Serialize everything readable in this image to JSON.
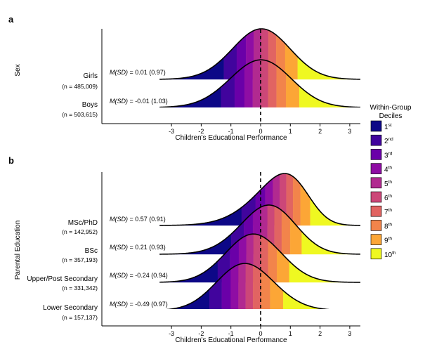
{
  "legend": {
    "title_line1": "Within-Group",
    "title_line2": "Deciles",
    "items": [
      {
        "num": "1",
        "sup": "st",
        "color": "#0d0887"
      },
      {
        "num": "2",
        "sup": "nd",
        "color": "#41049d"
      },
      {
        "num": "3",
        "sup": "rd",
        "color": "#6a00a8"
      },
      {
        "num": "4",
        "sup": "th",
        "color": "#8f0da4"
      },
      {
        "num": "5",
        "sup": "th",
        "color": "#b12a90"
      },
      {
        "num": "6",
        "sup": "th",
        "color": "#cc4778"
      },
      {
        "num": "7",
        "sup": "th",
        "color": "#e16462"
      },
      {
        "num": "8",
        "sup": "th",
        "color": "#f2844b"
      },
      {
        "num": "9",
        "sup": "th",
        "color": "#fca636"
      },
      {
        "num": "10",
        "sup": "th",
        "color": "#eff821"
      }
    ]
  },
  "chart_data": [
    {
      "type": "area",
      "panel_label": "a",
      "ylabel": "Sex",
      "xlabel": "Children's Educational Performance",
      "xlim": [
        -3.4,
        3.4
      ],
      "xticks": [
        -3,
        -2,
        -1,
        0,
        1,
        2,
        3
      ],
      "reference_line_x": 0,
      "groups": [
        {
          "name": "Girls",
          "n_label": "(n = 485,009)",
          "stat_label": "M(SD)",
          "stat_value": " =  0.01 (0.97)",
          "mean": 0.01,
          "sd": 0.97,
          "skew": -0.6
        },
        {
          "name": "Boys",
          "n_label": "(n = 503,615)",
          "stat_label": "M(SD)",
          "stat_value": " = -0.01 (1.03)",
          "mean": -0.01,
          "sd": 1.03,
          "skew": -0.6
        }
      ]
    },
    {
      "type": "area",
      "panel_label": "b",
      "ylabel": "Parental Education",
      "xlabel": "Children's Educational Performance",
      "xlim": [
        -3.4,
        3.4
      ],
      "xticks": [
        -3,
        -2,
        -1,
        0,
        1,
        2,
        3
      ],
      "reference_line_x": 0,
      "groups": [
        {
          "name": "MSc/PhD",
          "n_label": "(n = 142,952)",
          "stat_label": "M(SD)",
          "stat_value": " =  0.57 (0.91)",
          "mean": 0.57,
          "sd": 0.91,
          "skew": -2.0
        },
        {
          "name": "BSc",
          "n_label": "(n = 357,193)",
          "stat_label": "M(SD)",
          "stat_value": " =  0.21 (0.93)",
          "mean": 0.21,
          "sd": 0.93,
          "skew": -1.0
        },
        {
          "name": "Upper/Post Secondary",
          "n_label": "(n = 331,342)",
          "stat_label": "M(SD)",
          "stat_value": " = -0.24 (0.94)",
          "mean": -0.24,
          "sd": 0.94,
          "skew": 0.3
        },
        {
          "name": "Lower Secondary",
          "n_label": "(n = 157,137)",
          "stat_label": "M(SD)",
          "stat_value": " = -0.49 (0.97)",
          "mean": -0.49,
          "sd": 0.97,
          "skew": 0.8
        }
      ]
    }
  ]
}
